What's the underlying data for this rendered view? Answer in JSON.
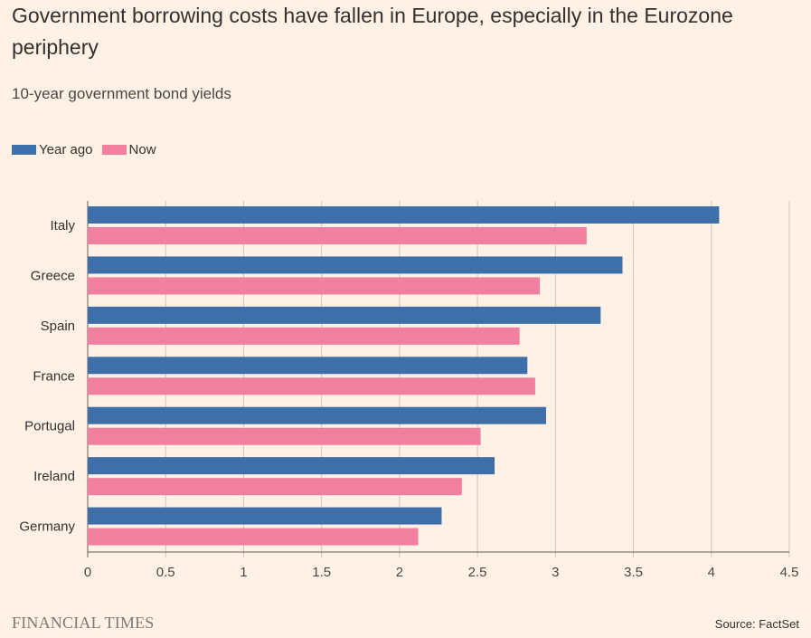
{
  "title": "Government borrowing costs have fallen in Europe, especially in the Eurozone periphery",
  "subtitle": "10-year government bond yields",
  "brand": "FINANCIAL TIMES",
  "source": "Source: FactSet",
  "colors": {
    "year_ago": "#3E6FA8",
    "now": "#F07FA0",
    "grid": "#CEC6BE",
    "axis": "#66605C",
    "background": "#FFF1E5"
  },
  "chart_data": {
    "type": "bar",
    "orientation": "horizontal",
    "categories": [
      "Italy",
      "Greece",
      "Spain",
      "France",
      "Portugal",
      "Ireland",
      "Germany"
    ],
    "series": [
      {
        "name": "Year ago",
        "values": [
          4.05,
          3.43,
          3.29,
          2.82,
          2.94,
          2.61,
          2.27
        ]
      },
      {
        "name": "Now",
        "values": [
          3.2,
          2.9,
          2.77,
          2.87,
          2.52,
          2.4,
          2.12
        ]
      }
    ],
    "xlim": [
      0,
      4.5
    ],
    "xticks": [
      0,
      0.5,
      1,
      1.5,
      2,
      2.5,
      3,
      3.5,
      4,
      4.5
    ],
    "xtick_labels": [
      "0",
      "0.5",
      "1",
      "1.5",
      "2",
      "2.5",
      "3",
      "3.5",
      "4",
      "4.5"
    ],
    "grid": true,
    "legend_position": "top-left"
  }
}
